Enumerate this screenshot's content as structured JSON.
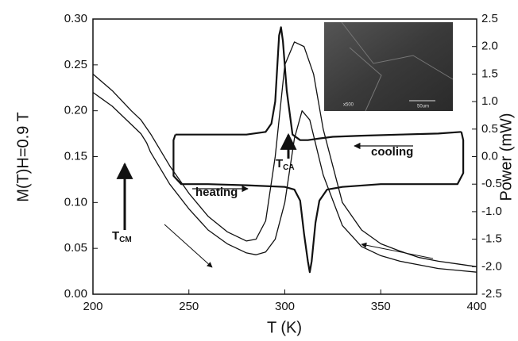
{
  "chart_data": {
    "type": "line",
    "xlabel": "T (K)",
    "ylabel": "M(T)H=0.9 T",
    "y2label": "Power (mW)",
    "xlim": [
      200,
      400
    ],
    "xticks": [
      200,
      250,
      300,
      350,
      400
    ],
    "ylim": [
      0,
      0.3
    ],
    "yticks": [
      {
        "value": 0,
        "label": "0.00"
      },
      0.05,
      {
        "value": 0.1,
        "label": "0.10"
      },
      0.15,
      {
        "value": 0.2,
        "label": "0.20"
      },
      0.25,
      {
        "value": 0.3,
        "label": "0.30"
      }
    ],
    "y2lim": [
      -2.5,
      2.5
    ],
    "y2ticks": [
      -2.5,
      {
        "value": -2,
        "label": "-2.0"
      },
      -1.5,
      {
        "value": -1,
        "label": "-1.0"
      },
      -0.5,
      {
        "value": 0,
        "label": "0.0"
      },
      0.5,
      {
        "value": 1,
        "label": "1.0"
      },
      1.5,
      {
        "value": 2,
        "label": "2.0"
      },
      2.5
    ],
    "series": [
      {
        "color": "#111111",
        "width": 1.3,
        "x": [
          200,
          210,
          220,
          225,
          230,
          240,
          250,
          260,
          270,
          280,
          285,
          290,
          295,
          300,
          305,
          310,
          315,
          320,
          330,
          340,
          350,
          360,
          370,
          380,
          390,
          400
        ],
        "values": [
          0.24,
          0.222,
          0.2,
          0.19,
          0.175,
          0.14,
          0.11,
          0.085,
          0.068,
          0.058,
          0.06,
          0.08,
          0.15,
          0.25,
          0.275,
          0.27,
          0.24,
          0.18,
          0.1,
          0.07,
          0.055,
          0.047,
          0.04,
          0.036,
          0.033,
          0.03
        ]
      },
      {
        "color": "#111111",
        "width": 1.3,
        "x": [
          200,
          210,
          220,
          225,
          228,
          230,
          240,
          250,
          260,
          270,
          280,
          285,
          290,
          295,
          300,
          305,
          309,
          313,
          320,
          330,
          340,
          350,
          360,
          370,
          380,
          390,
          400
        ],
        "values": [
          0.22,
          0.205,
          0.185,
          0.175,
          0.165,
          0.155,
          0.12,
          0.093,
          0.07,
          0.055,
          0.045,
          0.043,
          0.046,
          0.06,
          0.1,
          0.17,
          0.2,
          0.19,
          0.13,
          0.075,
          0.052,
          0.042,
          0.036,
          0.032,
          0.028,
          0.026,
          0.024
        ]
      },
      {
        "color": "#111111",
        "width": 2.2,
        "axis": "y2",
        "x": [
          392,
          380,
          360,
          340,
          325,
          318,
          312,
          308,
          304,
          301,
          299,
          298,
          297,
          295,
          293,
          290,
          280,
          260,
          243
        ],
        "values": [
          0.45,
          0.42,
          0.4,
          0.38,
          0.36,
          0.33,
          0.3,
          0.3,
          0.4,
          1.2,
          2.1,
          2.35,
          2.2,
          1.0,
          0.6,
          0.45,
          0.4,
          0.4,
          0.4
        ]
      },
      {
        "color": "#111111",
        "width": 2.2,
        "axis": "y2",
        "x": [
          243,
          242,
          242,
          246,
          260,
          280,
          300,
          305,
          308,
          310,
          312,
          313,
          314,
          316,
          318,
          322,
          330,
          350,
          370,
          390,
          393,
          393,
          392
        ],
        "values": [
          0.4,
          0.3,
          -0.35,
          -0.5,
          -0.5,
          -0.52,
          -0.55,
          -0.6,
          -0.8,
          -1.4,
          -1.9,
          -2.1,
          -1.9,
          -1.2,
          -0.8,
          -0.6,
          -0.55,
          -0.5,
          -0.5,
          -0.5,
          -0.3,
          0.3,
          0.45
        ]
      }
    ],
    "annotations": [
      {
        "text": "T",
        "sub": "CM"
      },
      {
        "text": "T",
        "sub": "CA"
      },
      {
        "text": "cooling"
      },
      {
        "text": "heating"
      }
    ],
    "inset": {
      "magnification": "x500",
      "scale": "50um"
    }
  }
}
